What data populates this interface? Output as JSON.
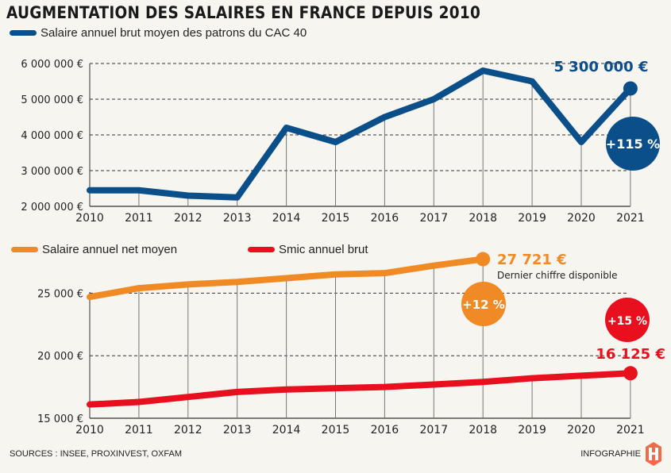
{
  "title": "AUGMENTATION DES SALAIRES EN FRANCE DEPUIS 2010",
  "footer": {
    "sources": "SOURCES : INSEE, PROXINVEST, OXFAM",
    "credit": "INFOGRAPHIE"
  },
  "chart_data": [
    {
      "type": "line",
      "title": "AUGMENTATION DES SALAIRES EN FRANCE DEPUIS 2010",
      "x": [
        2010,
        2011,
        2012,
        2013,
        2014,
        2015,
        2016,
        2017,
        2018,
        2019,
        2020,
        2021
      ],
      "x_tick_labels": [
        "2010",
        "2011",
        "2012",
        "2013",
        "2014",
        "2015",
        "2016",
        "2017",
        "2018",
        "2019",
        "2020",
        "2021"
      ],
      "y_tick_values": [
        2000000,
        3000000,
        4000000,
        5000000,
        6000000
      ],
      "y_tick_labels": [
        "2 000 000 €",
        "3 000 000 €",
        "4 000 000 €",
        "5 000 000 €",
        "6 000 000 €"
      ],
      "ylim": [
        2000000,
        6000000
      ],
      "grid": true,
      "series": [
        {
          "name": "Salaire annuel brut moyen des patrons du CAC 40",
          "color": "#0b4f8a",
          "values": [
            2450000,
            2450000,
            2300000,
            2250000,
            4200000,
            3800000,
            4500000,
            5000000,
            5800000,
            5500000,
            3800000,
            5300000
          ]
        }
      ],
      "annotations": [
        {
          "text": "5 300 000 €",
          "x": 2021,
          "color": "#0b4f8a"
        },
        {
          "text": "+115 %",
          "type": "badge",
          "color": "#0b4f8a"
        }
      ]
    },
    {
      "type": "line",
      "x": [
        2010,
        2011,
        2012,
        2013,
        2014,
        2015,
        2016,
        2017,
        2018,
        2019,
        2020,
        2021
      ],
      "x_tick_labels": [
        "2010",
        "2011",
        "2012",
        "2013",
        "2014",
        "2015",
        "2016",
        "2017",
        "2018",
        "2019",
        "2020",
        "2021"
      ],
      "y_tick_values": [
        15000,
        20000,
        25000
      ],
      "y_tick_labels": [
        "15 000 €",
        "20 000 €",
        "25 000 €"
      ],
      "ylim": [
        15000,
        27500
      ],
      "grid": true,
      "series": [
        {
          "name": "Salaire annuel net moyen",
          "color": "#f08a24",
          "values": [
            24700,
            25400,
            25700,
            25900,
            26200,
            26500,
            26600,
            27200,
            27721,
            null,
            null,
            null
          ]
        },
        {
          "name": "Smic annuel brut",
          "color": "#e8101f",
          "values": [
            16100,
            16300,
            16700,
            17100,
            17300,
            17400,
            17500,
            17700,
            17900,
            18200,
            18400,
            18600
          ]
        }
      ],
      "annotations": [
        {
          "text": "27 721 €",
          "x": 2018,
          "color": "#f08a24"
        },
        {
          "text": "Dernier chiffre disponible",
          "x": 2018,
          "color": "#222222"
        },
        {
          "text": "+12 %",
          "type": "badge",
          "color": "#f08a24"
        },
        {
          "text": "+15 %",
          "type": "badge",
          "color": "#e8101f"
        },
        {
          "text": "16 125 €",
          "x": 2021,
          "color": "#e8101f"
        }
      ]
    }
  ]
}
